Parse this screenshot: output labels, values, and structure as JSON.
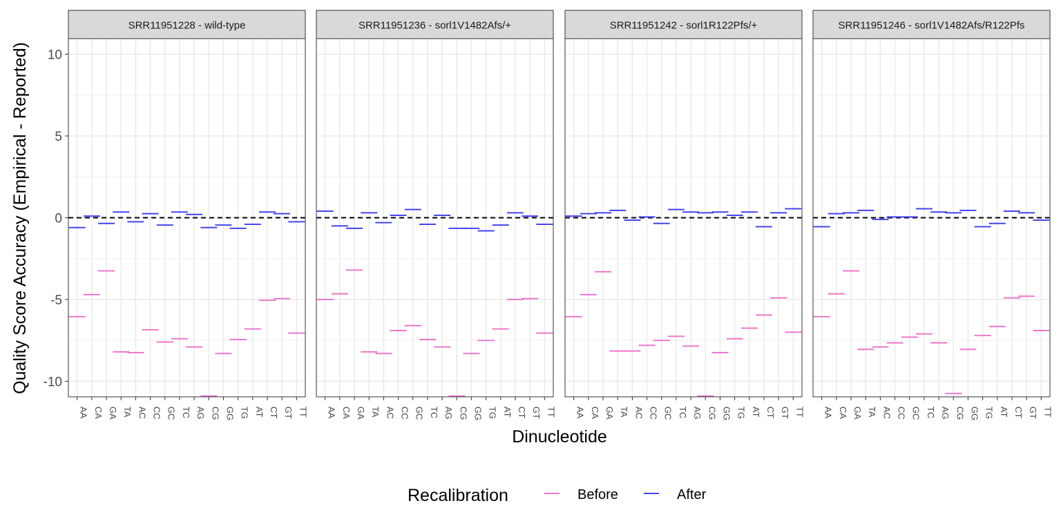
{
  "chart_data": {
    "type": "scatter",
    "xlabel": "Dinucleotide",
    "ylabel": "Quality Score Accuracy (Empirical - Reported)",
    "ylim": [
      -10.95,
      10.95
    ],
    "yticks": [
      10,
      5,
      0,
      -5,
      -10
    ],
    "ytick_labels": [
      "10",
      "5",
      "0",
      "-5",
      "-10"
    ],
    "categories": [
      "AA",
      "CA",
      "GA",
      "TA",
      "AC",
      "CC",
      "GC",
      "TC",
      "AG",
      "CG",
      "GG",
      "TG",
      "AT",
      "CT",
      "GT",
      "TT"
    ],
    "reference_line": 0,
    "grid": true,
    "legend": {
      "title": "Recalibration",
      "position": "bottom",
      "entries": [
        {
          "label": "Before",
          "color": "#ee77cc"
        },
        {
          "label": "After",
          "color": "#4444ee"
        }
      ]
    },
    "panels": [
      {
        "title": "SRR11951228 - wild-type",
        "series": [
          {
            "name": "Before",
            "color": "#ee77cc",
            "values": [
              -6.05,
              -4.7,
              -3.25,
              -8.2,
              -8.25,
              -6.85,
              -7.6,
              -7.4,
              -7.9,
              -10.9,
              -8.3,
              -7.45,
              -6.8,
              -5.05,
              -4.95,
              -7.05
            ]
          },
          {
            "name": "After",
            "color": "#4444ee",
            "values": [
              -0.6,
              0.1,
              -0.35,
              0.35,
              -0.25,
              0.25,
              -0.45,
              0.35,
              0.2,
              -0.6,
              -0.45,
              -0.65,
              -0.4,
              0.35,
              0.25,
              -0.25
            ]
          }
        ]
      },
      {
        "title": "SRR11951236 - sorl1V1482Afs/+",
        "series": [
          {
            "name": "Before",
            "color": "#ee77cc",
            "values": [
              -5,
              -4.65,
              -3.2,
              -8.2,
              -8.3,
              -6.9,
              -6.6,
              -7.45,
              -7.9,
              -10.9,
              -8.3,
              -7.5,
              -6.8,
              -5,
              -4.95,
              -7.05
            ]
          },
          {
            "name": "After",
            "color": "#4444ee",
            "values": [
              0.4,
              -0.5,
              -0.65,
              0.3,
              -0.3,
              0.15,
              0.5,
              -0.4,
              0.15,
              -0.65,
              -0.65,
              -0.8,
              -0.45,
              0.3,
              0.1,
              -0.4
            ]
          }
        ]
      },
      {
        "title": "SRR11951242 - sorl1R122Pfs/+",
        "series": [
          {
            "name": "Before",
            "color": "#ee77cc",
            "values": [
              -6.05,
              -4.7,
              -3.3,
              -8.15,
              -8.15,
              -7.8,
              -7.5,
              -7.25,
              -7.85,
              -10.9,
              -8.25,
              -7.4,
              -6.75,
              -5.95,
              -4.9,
              -7
            ]
          },
          {
            "name": "After",
            "color": "#4444ee",
            "values": [
              0.1,
              0.25,
              0.3,
              0.45,
              -0.15,
              0.05,
              -0.35,
              0.5,
              0.35,
              0.3,
              0.35,
              0.15,
              0.35,
              -0.55,
              0.3,
              0.55
            ]
          }
        ]
      },
      {
        "title": "SRR11951246 - sorl1V1482Afs/R122Pfs",
        "series": [
          {
            "name": "Before",
            "color": "#ee77cc",
            "values": [
              -6.05,
              -4.65,
              -3.25,
              -8.05,
              -7.9,
              -7.65,
              -7.3,
              -7.1,
              -7.65,
              -10.75,
              -8.05,
              -7.2,
              -6.65,
              -4.9,
              -4.8,
              -6.9
            ]
          },
          {
            "name": "After",
            "color": "#4444ee",
            "values": [
              -0.55,
              0.25,
              0.3,
              0.45,
              -0.1,
              0.05,
              0.05,
              0.55,
              0.35,
              0.3,
              0.45,
              -0.55,
              -0.35,
              0.4,
              0.3,
              -0.15
            ]
          }
        ]
      }
    ]
  }
}
